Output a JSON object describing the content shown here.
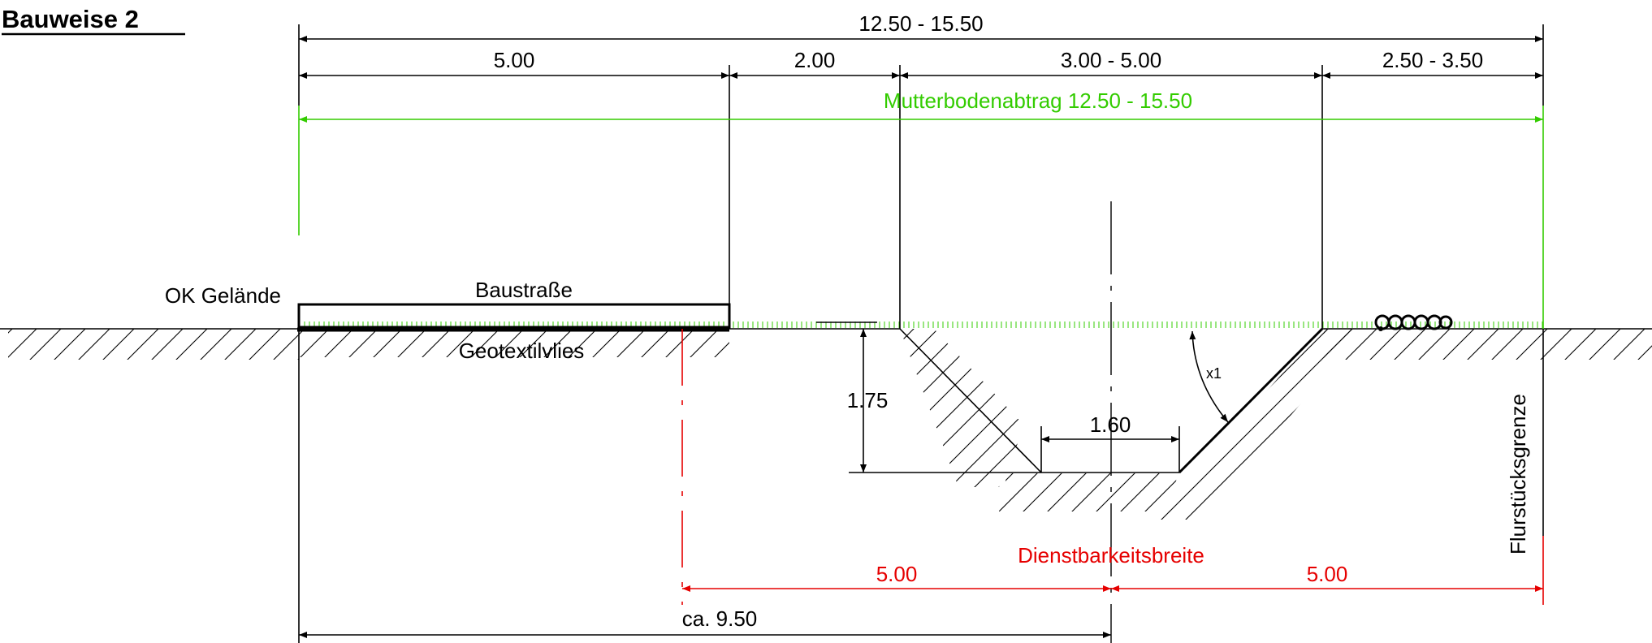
{
  "title": "Bauweise 2",
  "dimensions": {
    "total": "12.50 - 15.50",
    "seg_road": "5.00",
    "seg_gap": "2.00",
    "seg_ditch": "3.00 - 5.00",
    "seg_right": "2.50 - 3.50",
    "ditch_depth": "1.75",
    "ditch_bottom": "1.60",
    "slope": "x1",
    "easement_left": "5.00",
    "easement_right": "5.00",
    "approx": "ca. 9.50"
  },
  "labels": {
    "topsoil": "Mutterbodenabtrag 12.50 - 15.50",
    "ground_level": "OK Gelände",
    "construction_road": "Baustraße",
    "geotextile": "Geotextilvlies",
    "easement_width": "Dienstbarkeitsbreite",
    "property_line": "Flurstücksgrenze"
  },
  "colors": {
    "drawing": "#000000",
    "topsoil": "#33cc00",
    "easement": "#e60000",
    "background": "#ffffff"
  }
}
